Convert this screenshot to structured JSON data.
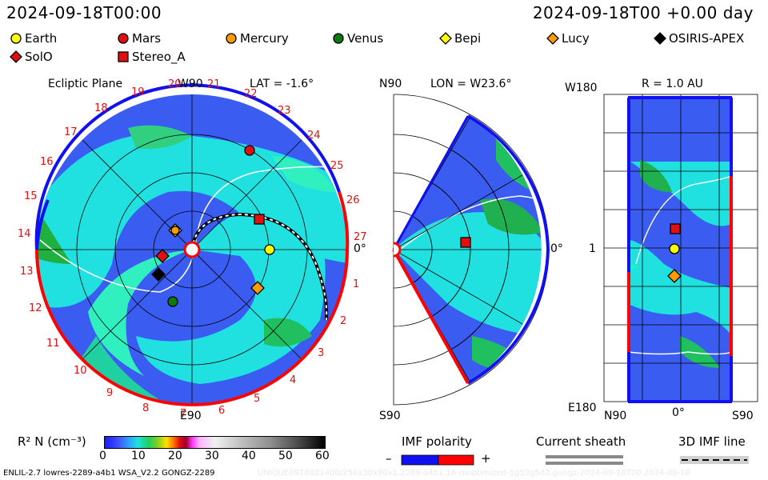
{
  "header": {
    "date": "2024-09-18T00:00",
    "date_offset": "2024-09-18T00 +0.00 day"
  },
  "legend": [
    {
      "name": "Earth",
      "shape": "circle",
      "color": "#ffff00"
    },
    {
      "name": "Mars",
      "shape": "circle",
      "color": "#e01010"
    },
    {
      "name": "Mercury",
      "shape": "circle",
      "color": "#ff9a00"
    },
    {
      "name": "Venus",
      "shape": "circle",
      "color": "#0a7a0a"
    },
    {
      "name": "Bepi",
      "shape": "diamond",
      "color": "#ffff00"
    },
    {
      "name": "Lucy",
      "shape": "diamond",
      "color": "#ff9a00"
    },
    {
      "name": "OSIRIS-APEX",
      "shape": "diamond",
      "color": "#000000"
    },
    {
      "name": "SolO",
      "shape": "diamond",
      "color": "#e01010"
    },
    {
      "name": "Stereo_A",
      "shape": "square",
      "color": "#e01010"
    }
  ],
  "panel1": {
    "title": "Ecliptic Plane",
    "top_label": "W90",
    "lat_label": "LAT = -1.6°",
    "bottom_label": "E90",
    "right_label": "0°",
    "ticks": [
      "19",
      "20",
      "21",
      "22",
      "23",
      "24",
      "25",
      "26",
      "27",
      "1",
      "2",
      "3",
      "4",
      "5",
      "6",
      "7",
      "8",
      "9",
      "10",
      "11",
      "12",
      "13",
      "14",
      "15",
      "16",
      "17",
      "18"
    ]
  },
  "panel2": {
    "top_left": "N90",
    "lon_label": "LON = W23.6°",
    "bottom_left": "S90",
    "right_label": "0°"
  },
  "panel3": {
    "top_left": "W180",
    "r_label": "R = 1.0 AU",
    "left_mid": "1",
    "bottom_left": "E180",
    "x_labels": [
      "N90",
      "0°",
      "S90"
    ]
  },
  "colorbar": {
    "label": "R² N (cm⁻³)",
    "ticks": [
      "0",
      "10",
      "20",
      "30",
      "40",
      "50",
      "60"
    ]
  },
  "bottom_legends": {
    "imf": "IMF polarity",
    "imf_minus": "–",
    "imf_plus": "+",
    "sheath": "Current sheath",
    "imf3d": "3D IMF line"
  },
  "footer": {
    "left": "ENLIL-2.7 lowres-2289-a4b1 WSA_V2.2 GONGZ-2289",
    "right": "UNIQUE0918021400/256x30x90x1.2289-a4b1.16-moptimized-1g53g5d2.gongz-2024-09-18T00 2024-09-18"
  },
  "colors": {
    "neg_polarity": "#1010f0",
    "pos_polarity": "#ff0000",
    "map_blue": "#3a5cf0",
    "map_cyan": "#20f0f0",
    "map_green": "#20c050"
  }
}
